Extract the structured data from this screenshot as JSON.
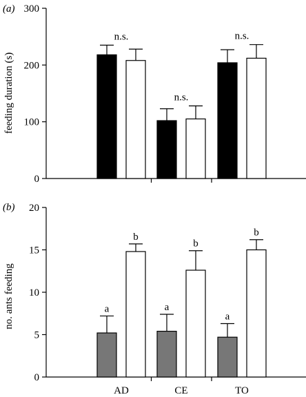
{
  "chart_data": [
    {
      "type": "bar",
      "panel_label": "(a)",
      "ylabel": "feeding duration (s)",
      "ylim": [
        0,
        300
      ],
      "yticks": [
        0,
        100,
        200,
        300
      ],
      "categories": [
        "AD",
        "CE",
        "TO"
      ],
      "series": [
        {
          "fill": "#000000",
          "values": [
            218,
            102,
            204
          ],
          "errors": [
            17,
            21,
            23
          ]
        },
        {
          "fill": "#ffffff",
          "values": [
            208,
            105,
            212
          ],
          "errors": [
            20,
            23,
            24
          ]
        }
      ],
      "annotations": [
        {
          "category": 0,
          "text": "n.s."
        },
        {
          "category": 1,
          "text": "n.s."
        },
        {
          "category": 2,
          "text": "n.s."
        }
      ],
      "show_category_labels": false
    },
    {
      "type": "bar",
      "panel_label": "(b)",
      "ylabel": "no. ants feeding",
      "ylim": [
        0,
        20
      ],
      "yticks": [
        0,
        5,
        10,
        15,
        20
      ],
      "categories": [
        "AD",
        "CE",
        "TO"
      ],
      "series": [
        {
          "fill": "#777777",
          "values": [
            5.2,
            5.4,
            4.7
          ],
          "errors": [
            2.0,
            2.0,
            1.6
          ],
          "letters": [
            "a",
            "a",
            "a"
          ]
        },
        {
          "fill": "#ffffff",
          "values": [
            14.8,
            12.6,
            15.0
          ],
          "errors": [
            0.9,
            2.3,
            1.2
          ],
          "letters": [
            "b",
            "b",
            "b"
          ]
        }
      ],
      "show_category_labels": true
    }
  ]
}
